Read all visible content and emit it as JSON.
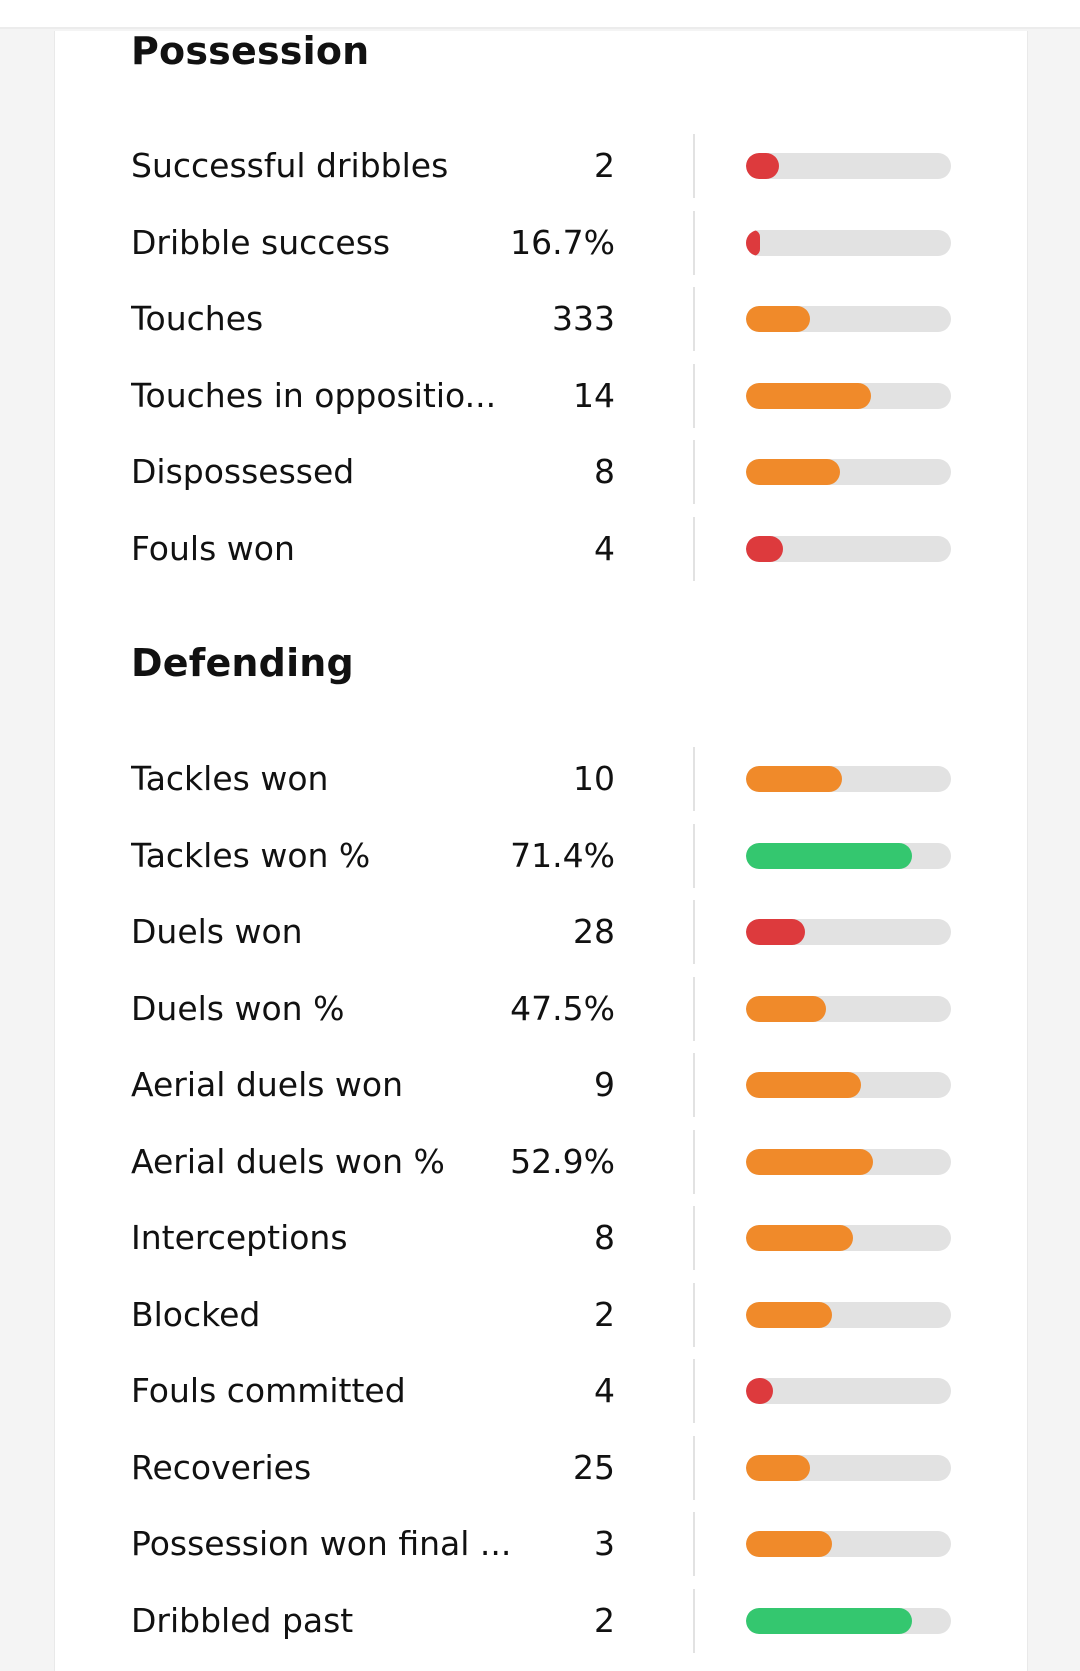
{
  "colors": {
    "red": "#dd3a3d",
    "orange": "#f08a2a",
    "green": "#34c76f",
    "track": "#e2e2e2"
  },
  "sections": [
    {
      "title": "Possession",
      "stats": [
        {
          "label": "Successful dribbles",
          "value": "2",
          "percentile": 0.16,
          "color": "red"
        },
        {
          "label": "Dribble success",
          "value": "16.7%",
          "percentile": 0.07,
          "color": "red"
        },
        {
          "label": "Touches",
          "value": "333",
          "percentile": 0.31,
          "color": "orange"
        },
        {
          "label": "Touches in oppositio...",
          "value": "14",
          "percentile": 0.61,
          "color": "orange"
        },
        {
          "label": "Dispossessed",
          "value": "8",
          "percentile": 0.46,
          "color": "orange"
        },
        {
          "label": "Fouls won",
          "value": "4",
          "percentile": 0.18,
          "color": "red"
        }
      ]
    },
    {
      "title": "Defending",
      "stats": [
        {
          "label": "Tackles won",
          "value": "10",
          "percentile": 0.47,
          "color": "orange"
        },
        {
          "label": "Tackles won %",
          "value": "71.4%",
          "percentile": 0.81,
          "color": "green"
        },
        {
          "label": "Duels won",
          "value": "28",
          "percentile": 0.29,
          "color": "red"
        },
        {
          "label": "Duels won %",
          "value": "47.5%",
          "percentile": 0.39,
          "color": "orange"
        },
        {
          "label": "Aerial duels won",
          "value": "9",
          "percentile": 0.56,
          "color": "orange"
        },
        {
          "label": "Aerial duels won %",
          "value": "52.9%",
          "percentile": 0.62,
          "color": "orange"
        },
        {
          "label": "Interceptions",
          "value": "8",
          "percentile": 0.52,
          "color": "orange"
        },
        {
          "label": "Blocked",
          "value": "2",
          "percentile": 0.42,
          "color": "orange"
        },
        {
          "label": "Fouls committed",
          "value": "4",
          "percentile": 0.13,
          "color": "red"
        },
        {
          "label": "Recoveries",
          "value": "25",
          "percentile": 0.31,
          "color": "orange"
        },
        {
          "label": "Possession won final ...",
          "value": "3",
          "percentile": 0.42,
          "color": "orange"
        },
        {
          "label": "Dribbled past",
          "value": "2",
          "percentile": 0.81,
          "color": "green"
        }
      ]
    }
  ]
}
